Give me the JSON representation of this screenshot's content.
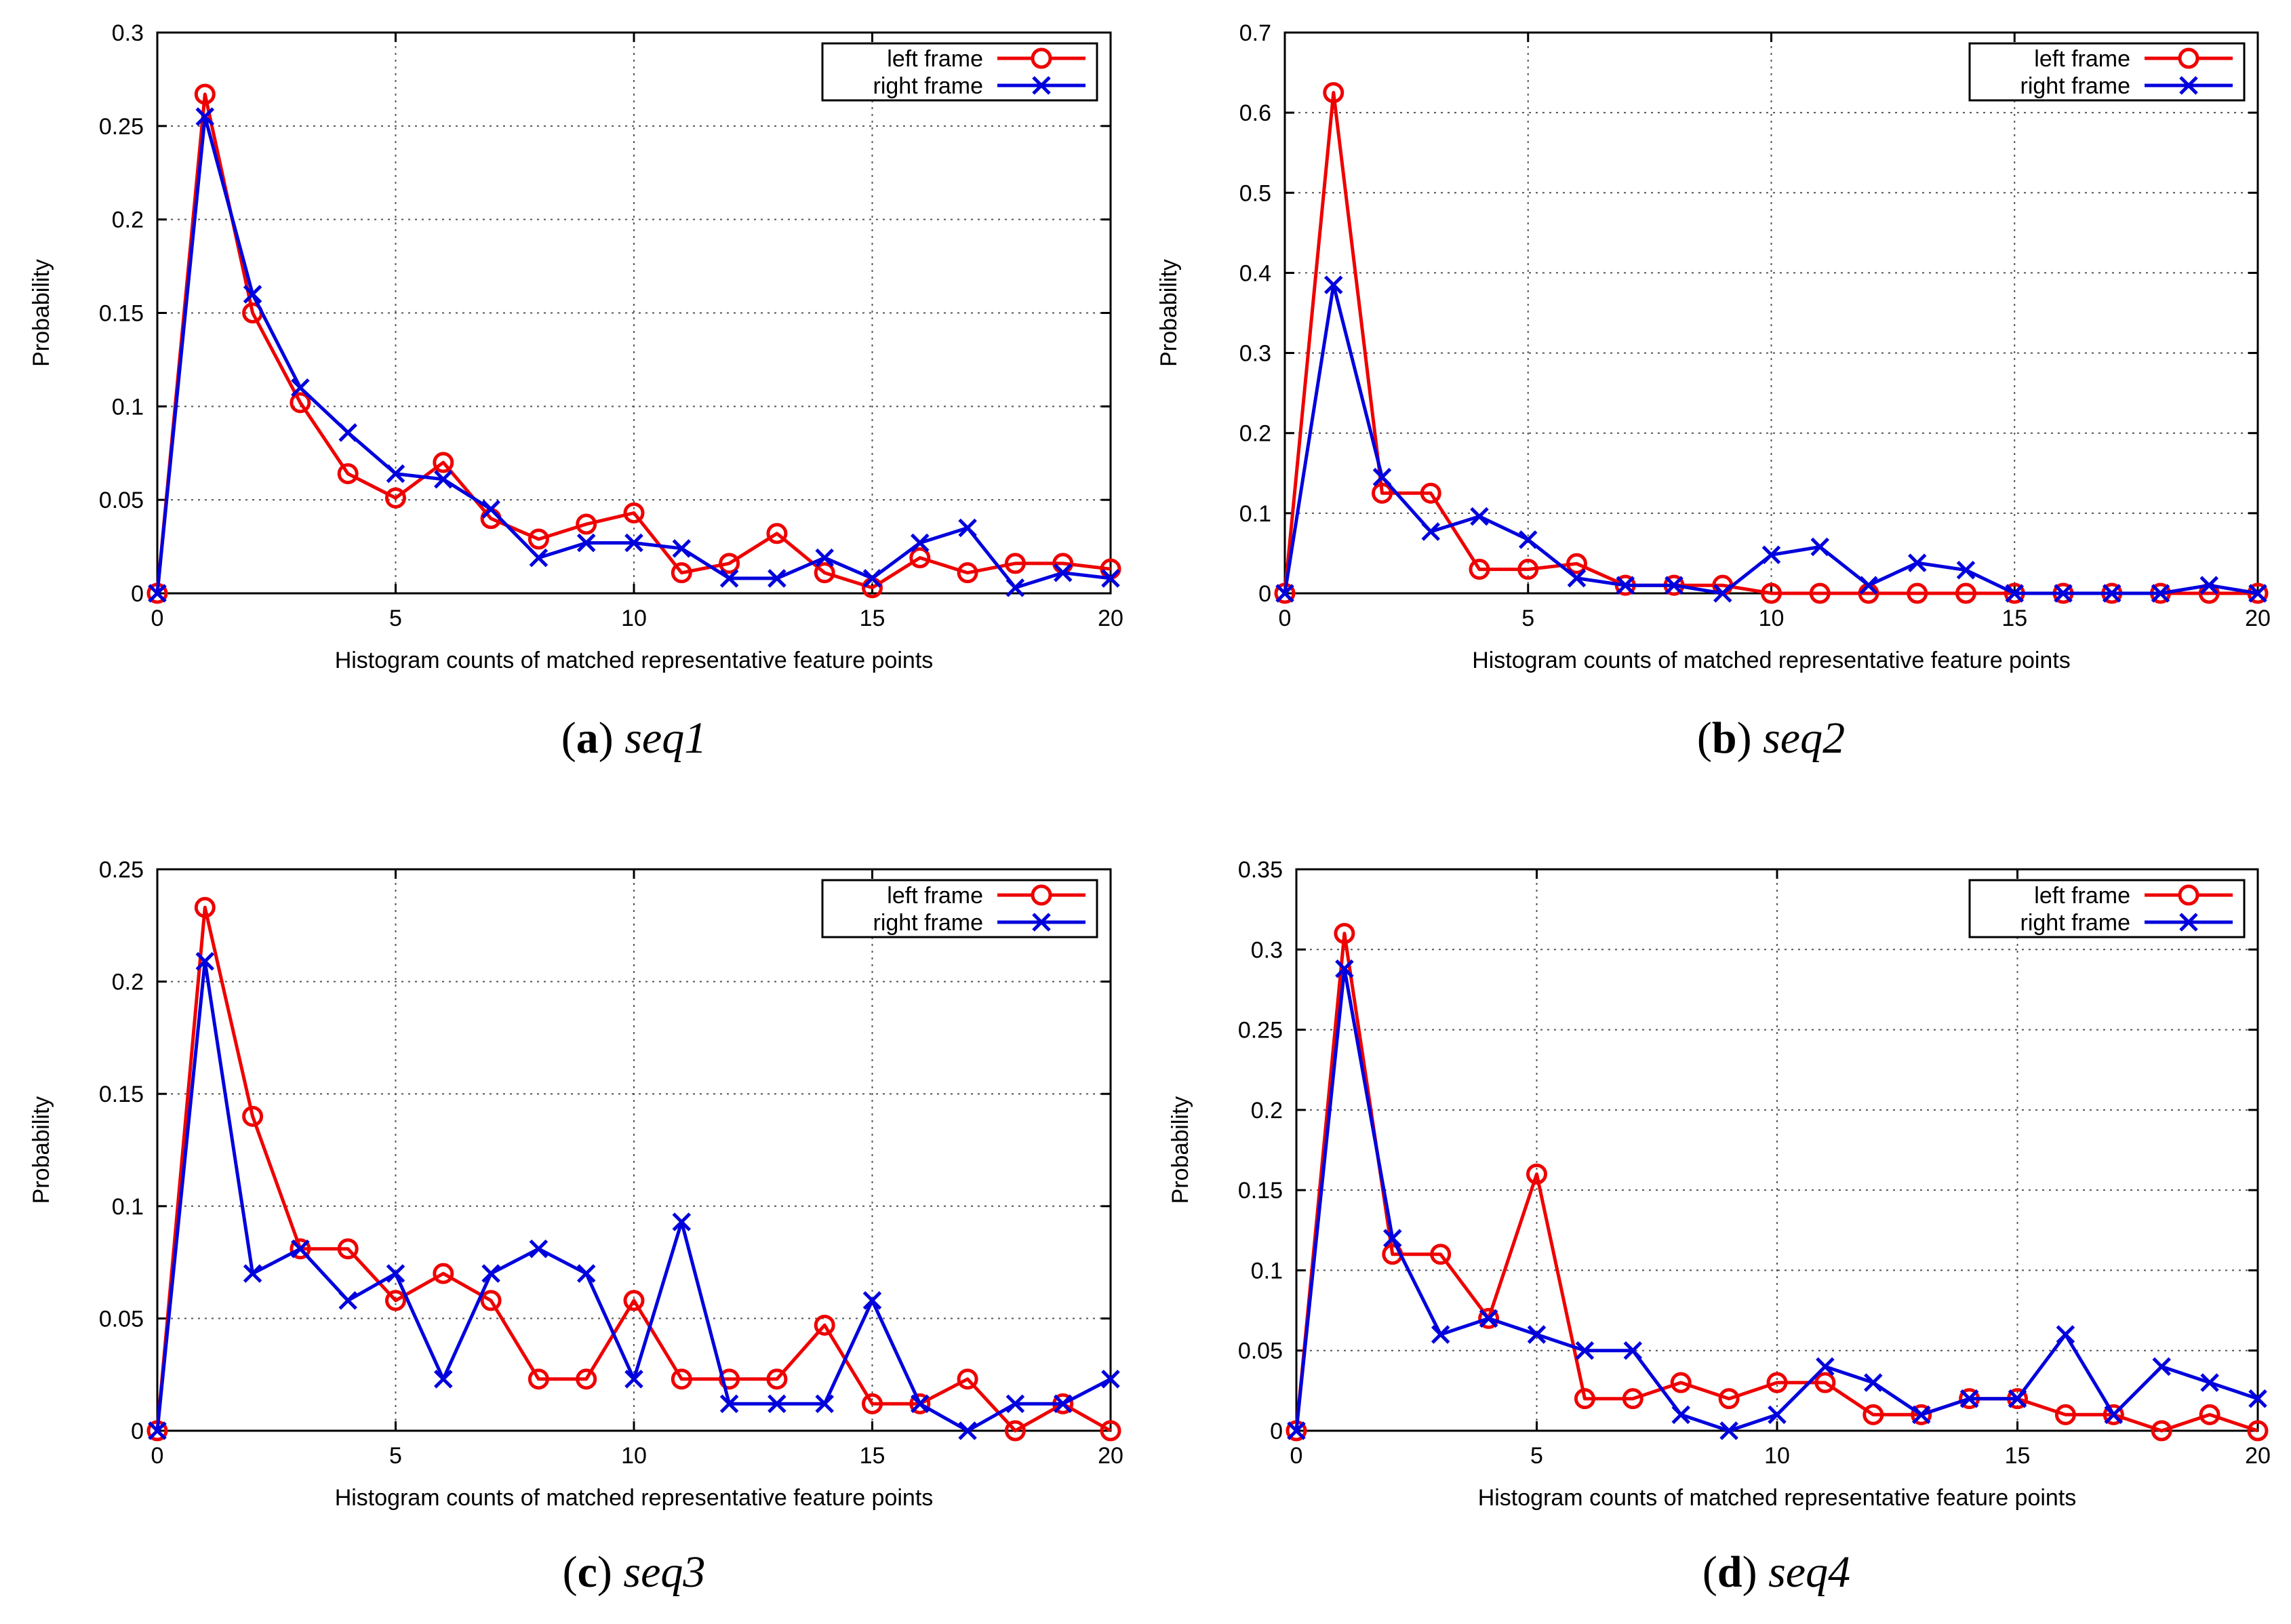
{
  "colors": {
    "left": "#ee0000",
    "right": "#0000dd",
    "grid": "#555555",
    "axis": "#000000"
  },
  "chart_data": [
    {
      "type": "line",
      "caption_label": "(a)",
      "caption_seq": "seq1",
      "xlabel": "Histogram counts of matched representative feature points",
      "ylabel": "Probability",
      "xlim": [
        0,
        20
      ],
      "ylim": [
        0,
        0.3
      ],
      "xticks": [
        0,
        5,
        10,
        15,
        20
      ],
      "yticks": [
        0,
        0.05,
        0.1,
        0.15,
        0.2,
        0.25,
        0.3
      ],
      "ytick_labels": [
        "0",
        "0.05",
        "0.1",
        "0.15",
        "0.2",
        "0.25",
        "0.3"
      ],
      "legend": [
        "left frame",
        "right frame"
      ],
      "x": [
        0,
        1,
        2,
        3,
        4,
        5,
        6,
        7,
        8,
        9,
        10,
        11,
        12,
        13,
        14,
        15,
        16,
        17,
        18,
        19,
        20
      ],
      "series": [
        {
          "name": "left frame",
          "marker": "circle",
          "values": [
            0,
            0.267,
            0.15,
            0.102,
            0.064,
            0.051,
            0.07,
            0.04,
            0.029,
            0.037,
            0.043,
            0.011,
            0.016,
            0.032,
            0.011,
            0.003,
            0.019,
            0.011,
            0.016,
            0.016,
            0.013
          ]
        },
        {
          "name": "right frame",
          "marker": "x",
          "values": [
            0,
            0.255,
            0.16,
            0.11,
            0.086,
            0.064,
            0.061,
            0.045,
            0.019,
            0.027,
            0.027,
            0.024,
            0.008,
            0.008,
            0.019,
            0.008,
            0.027,
            0.035,
            0.003,
            0.011,
            0.008
          ]
        }
      ]
    },
    {
      "type": "line",
      "caption_label": "(b)",
      "caption_seq": "seq2",
      "xlabel": "Histogram counts of matched representative feature points",
      "ylabel": "Probability",
      "xlim": [
        0,
        20
      ],
      "ylim": [
        0,
        0.7
      ],
      "xticks": [
        0,
        5,
        10,
        15,
        20
      ],
      "yticks": [
        0,
        0.1,
        0.2,
        0.3,
        0.4,
        0.5,
        0.6,
        0.7
      ],
      "ytick_labels": [
        "0",
        "0.1",
        "0.2",
        "0.3",
        "0.4",
        "0.5",
        "0.6",
        "0.7"
      ],
      "legend": [
        "left frame",
        "right frame"
      ],
      "x": [
        0,
        1,
        2,
        3,
        4,
        5,
        6,
        7,
        8,
        9,
        10,
        11,
        12,
        13,
        14,
        15,
        16,
        17,
        18,
        19,
        20
      ],
      "series": [
        {
          "name": "left frame",
          "marker": "circle",
          "values": [
            0,
            0.625,
            0.125,
            0.125,
            0.03,
            0.03,
            0.037,
            0.01,
            0.01,
            0.01,
            0,
            0,
            0,
            0,
            0,
            0,
            0,
            0,
            0,
            0,
            0
          ]
        },
        {
          "name": "right frame",
          "marker": "x",
          "values": [
            0,
            0.385,
            0.145,
            0.077,
            0.096,
            0.067,
            0.019,
            0.01,
            0.01,
            0,
            0.048,
            0.058,
            0.01,
            0.038,
            0.029,
            0,
            0,
            0,
            0,
            0.01,
            0
          ]
        }
      ]
    },
    {
      "type": "line",
      "caption_label": "(c)",
      "caption_seq": "seq3",
      "xlabel": "Histogram counts of matched representative feature points",
      "ylabel": "Probability",
      "xlim": [
        0,
        20
      ],
      "ylim": [
        0,
        0.25
      ],
      "xticks": [
        0,
        5,
        10,
        15,
        20
      ],
      "yticks": [
        0,
        0.05,
        0.1,
        0.15,
        0.2,
        0.25
      ],
      "ytick_labels": [
        "0",
        "0.05",
        "0.1",
        "0.15",
        "0.2",
        "0.25"
      ],
      "legend": [
        "left frame",
        "right frame"
      ],
      "x": [
        0,
        1,
        2,
        3,
        4,
        5,
        6,
        7,
        8,
        9,
        10,
        11,
        12,
        13,
        14,
        15,
        16,
        17,
        18,
        19,
        20
      ],
      "series": [
        {
          "name": "left frame",
          "marker": "circle",
          "values": [
            0,
            0.233,
            0.14,
            0.081,
            0.081,
            0.058,
            0.07,
            0.058,
            0.023,
            0.023,
            0.058,
            0.023,
            0.023,
            0.023,
            0.047,
            0.012,
            0.012,
            0.023,
            0,
            0.012,
            0
          ]
        },
        {
          "name": "right frame",
          "marker": "x",
          "values": [
            0,
            0.209,
            0.07,
            0.081,
            0.058,
            0.07,
            0.023,
            0.07,
            0.081,
            0.07,
            0.023,
            0.093,
            0.012,
            0.012,
            0.012,
            0.058,
            0.012,
            0,
            0.012,
            0.012,
            0.023
          ]
        }
      ]
    },
    {
      "type": "line",
      "caption_label": "(d)",
      "caption_seq": "seq4",
      "xlabel": "Histogram counts of matched representative feature points",
      "ylabel": "Probability",
      "xlim": [
        0,
        20
      ],
      "ylim": [
        0,
        0.35
      ],
      "xticks": [
        0,
        5,
        10,
        15,
        20
      ],
      "yticks": [
        0,
        0.05,
        0.1,
        0.15,
        0.2,
        0.25,
        0.3,
        0.35
      ],
      "ytick_labels": [
        "0",
        "0.05",
        "0.1",
        "0.15",
        "0.2",
        "0.25",
        "0.3",
        "0.35"
      ],
      "legend": [
        "left frame",
        "right frame"
      ],
      "x": [
        0,
        1,
        2,
        3,
        4,
        5,
        6,
        7,
        8,
        9,
        10,
        11,
        12,
        13,
        14,
        15,
        16,
        17,
        18,
        19,
        20
      ],
      "series": [
        {
          "name": "left frame",
          "marker": "circle",
          "values": [
            0,
            0.31,
            0.11,
            0.11,
            0.07,
            0.16,
            0.02,
            0.02,
            0.03,
            0.02,
            0.03,
            0.03,
            0.01,
            0.01,
            0.02,
            0.02,
            0.01,
            0.01,
            0,
            0.01,
            0
          ]
        },
        {
          "name": "right frame",
          "marker": "x",
          "values": [
            0,
            0.288,
            0.12,
            0.06,
            0.07,
            0.06,
            0.05,
            0.05,
            0.01,
            0,
            0.01,
            0.04,
            0.03,
            0.01,
            0.02,
            0.02,
            0.06,
            0.01,
            0.04,
            0.03,
            0.02
          ]
        }
      ]
    }
  ]
}
